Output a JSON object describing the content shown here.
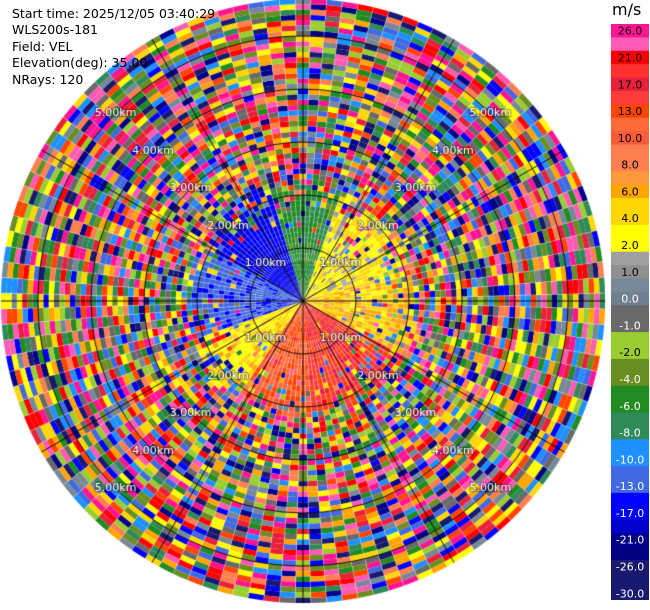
{
  "header": {
    "start_time": "Start time: 2025/12/05 03:40:29",
    "instrument": "WLS200s-181",
    "field": "Field: VEL",
    "elevation": "Elevation(deg): 35.00",
    "nrays": "NRays: 120"
  },
  "colorbar": {
    "unit": "m/s",
    "levels": [
      {
        "label": "26.0",
        "color": "#ff1493"
      },
      {
        "label": "",
        "color": "#ff5ab4"
      },
      {
        "label": "21.0",
        "color": "#ff0000"
      },
      {
        "label": "",
        "color": "#ff3030"
      },
      {
        "label": "17.0",
        "color": "#e8203c"
      },
      {
        "label": "",
        "color": "#ff3a3a"
      },
      {
        "label": "13.0",
        "color": "#ff4500"
      },
      {
        "label": "",
        "color": "#ff6a3a"
      },
      {
        "label": "10.0",
        "color": "#ff5a3a"
      },
      {
        "label": "",
        "color": "#ff7f50"
      },
      {
        "label": "8.0",
        "color": "#ff7f50"
      },
      {
        "label": "",
        "color": "#ff9a3c"
      },
      {
        "label": "6.0",
        "color": "#ffa500"
      },
      {
        "label": "",
        "color": "#ffd700"
      },
      {
        "label": "4.0",
        "color": "#ffd700"
      },
      {
        "label": "",
        "color": "#ffff00"
      },
      {
        "label": "2.0",
        "color": "#ffff00"
      },
      {
        "label": "",
        "color": "#a0a0a0"
      },
      {
        "label": "1.0",
        "color": "#909090"
      },
      {
        "label": "",
        "color": "#778899"
      },
      {
        "label": "0.0",
        "color": "#708090"
      },
      {
        "label": "",
        "color": "#696969"
      },
      {
        "label": "-1.0",
        "color": "#696969"
      },
      {
        "label": "",
        "color": "#9acd32"
      },
      {
        "label": "-2.0",
        "color": "#9acd32"
      },
      {
        "label": "",
        "color": "#6b8e23"
      },
      {
        "label": "-4.0",
        "color": "#6b8e23"
      },
      {
        "label": "",
        "color": "#228b22"
      },
      {
        "label": "-6.0",
        "color": "#228b22"
      },
      {
        "label": "",
        "color": "#2e8b57"
      },
      {
        "label": "-8.0",
        "color": "#2e8b57"
      },
      {
        "label": "",
        "color": "#1e90ff"
      },
      {
        "label": "-10.0",
        "color": "#1e90ff"
      },
      {
        "label": "",
        "color": "#4169e1"
      },
      {
        "label": "-13.0",
        "color": "#4169e1"
      },
      {
        "label": "",
        "color": "#0000ff"
      },
      {
        "label": "-17.0",
        "color": "#0000ff"
      },
      {
        "label": "",
        "color": "#0000cd"
      },
      {
        "label": "-21.0",
        "color": "#00008b"
      },
      {
        "label": "",
        "color": "#000080"
      },
      {
        "label": "-26.0",
        "color": "#191970"
      },
      {
        "label": "",
        "color": "#191970"
      },
      {
        "label": "-30.0",
        "color": "#191970"
      }
    ]
  },
  "chart_data": {
    "type": "heatmap",
    "projection": "polar-ppi",
    "field": "VEL",
    "units": "m/s",
    "nrays": 120,
    "range_rings_km": [
      1,
      2,
      3,
      4,
      5
    ],
    "range_ring_labels": [
      "1.00km",
      "2.00km",
      "3.00km",
      "4.00km",
      "5.00km"
    ],
    "max_range_km": 5.7,
    "gate_spacing_km": 0.1,
    "vmin": -30,
    "vmax": 30,
    "clean_region_km": 2.4,
    "sectors": [
      {
        "az_start": 300,
        "az_end": 345,
        "value": -17,
        "note": "blue"
      },
      {
        "az_start": 250,
        "az_end": 300,
        "value": -13,
        "note": "blue"
      },
      {
        "az_start": 345,
        "az_end": 20,
        "value": -6,
        "note": "green"
      },
      {
        "az_start": 20,
        "az_end": 75,
        "value": 3,
        "note": "yellow"
      },
      {
        "az_start": 75,
        "az_end": 120,
        "value": 5,
        "note": "yellow/orange"
      },
      {
        "az_start": 120,
        "az_end": 175,
        "value": 15,
        "note": "red/pink"
      },
      {
        "az_start": 175,
        "az_end": 215,
        "value": 12,
        "note": "red"
      },
      {
        "az_start": 215,
        "az_end": 250,
        "value": 4,
        "note": "yellow"
      }
    ]
  }
}
